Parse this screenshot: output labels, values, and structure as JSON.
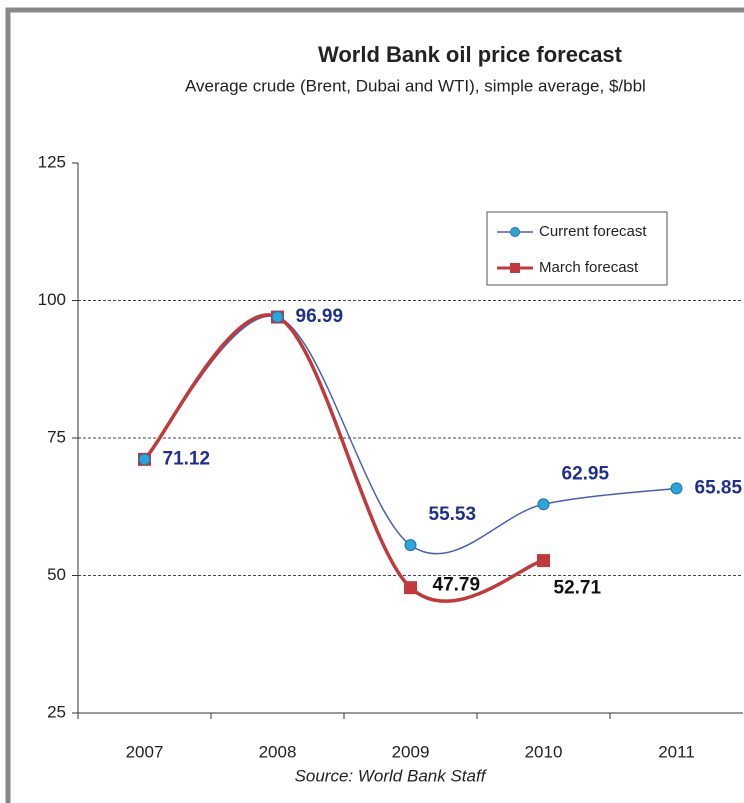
{
  "chart_data": {
    "type": "line",
    "title": "World Bank oil price forecast",
    "subtitle": "Average crude (Brent, Dubai and WTI), simple average, $/bbl",
    "source": "Source: World Bank Staff",
    "categories": [
      "2007",
      "2008",
      "2009",
      "2010",
      "2011"
    ],
    "series": [
      {
        "name": "Current forecast",
        "color": "#4a5fb0",
        "marker_color": "#2aa6d8",
        "label_color": "#1f2f8f",
        "values": [
          71.12,
          96.99,
          55.53,
          62.95,
          65.85
        ]
      },
      {
        "name": "March forecast",
        "color": "#c0393b",
        "marker_color": "#c0393b",
        "label_color": "#111111",
        "values": [
          71.12,
          96.99,
          47.79,
          52.71,
          null
        ]
      }
    ],
    "ylim": [
      25,
      125
    ],
    "yticks": [
      25,
      50,
      75,
      100,
      125
    ],
    "grid": true,
    "legend": "upper right"
  }
}
